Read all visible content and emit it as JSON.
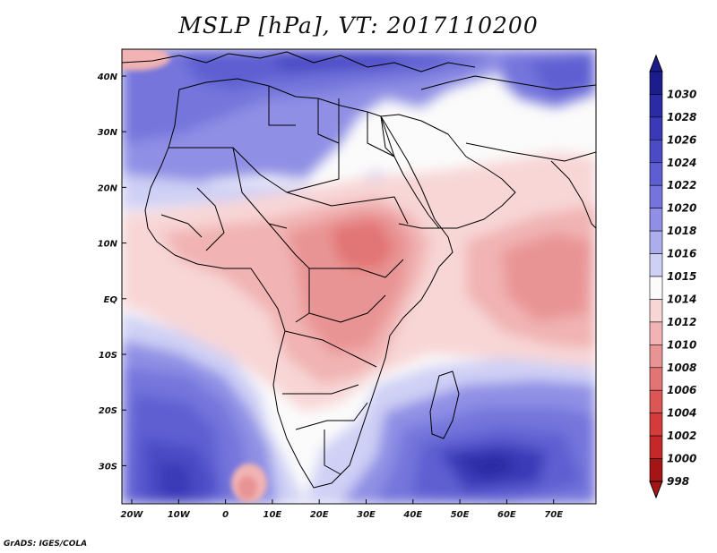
{
  "title": "MSLP [hPa], VT: 2017110200",
  "credit": "GrADS: IGES/COLA",
  "map": {
    "lat_ticks": [
      "40N",
      "30N",
      "20N",
      "10N",
      "EQ",
      "10S",
      "20S",
      "30S"
    ],
    "lon_ticks": [
      "20W",
      "10W",
      "0",
      "10E",
      "20E",
      "30E",
      "40E",
      "50E",
      "60E",
      "70E"
    ]
  },
  "colorbar": {
    "top_arrow_color": "#1c1c8c",
    "bottom_arrow_color": "#a51515",
    "levels": [
      {
        "label": "1030",
        "color": "#1c1c8c"
      },
      {
        "label": "1028",
        "color": "#2b2ba5"
      },
      {
        "label": "1026",
        "color": "#3a3ab8"
      },
      {
        "label": "1024",
        "color": "#4b4bc6"
      },
      {
        "label": "1022",
        "color": "#5e5ed2"
      },
      {
        "label": "1020",
        "color": "#7474dc"
      },
      {
        "label": "1018",
        "color": "#8f8fe5"
      },
      {
        "label": "1016",
        "color": "#adadee"
      },
      {
        "label": "1015",
        "color": "#cfd0f5"
      },
      {
        "label": "1014",
        "color": "#fbfbfb"
      },
      {
        "label": "1012",
        "color": "#f8d6d6"
      },
      {
        "label": "1010",
        "color": "#f1b3b3"
      },
      {
        "label": "1008",
        "color": "#e99494"
      },
      {
        "label": "1006",
        "color": "#e27474"
      },
      {
        "label": "1004",
        "color": "#dc5656"
      },
      {
        "label": "1002",
        "color": "#d43b3b"
      },
      {
        "label": "1000",
        "color": "#c42828"
      },
      {
        "label": "998",
        "color": "#a51515"
      }
    ]
  }
}
